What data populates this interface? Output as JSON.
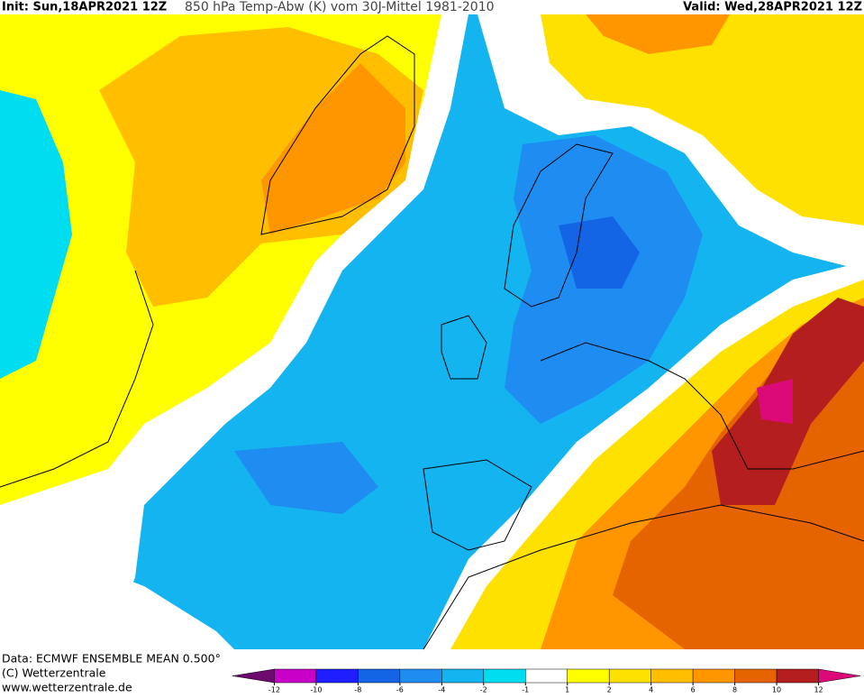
{
  "header": {
    "init": "Init: Sun,18APR2021 12Z",
    "title": "850 hPa Temp-Abw (K) vom 30J-Mittel 1981-2010",
    "valid": "Valid: Wed,28APR2021 12Z"
  },
  "footer": {
    "data": "Data: ECMWF ENSEMBLE MEAN 0.500°",
    "copyright": "(C) Wetterzentrale",
    "url": "www.wetterzentrale.de"
  },
  "colorbar": {
    "ticks": [
      -12,
      -10,
      -8,
      -6,
      -4,
      -2,
      -1,
      1,
      2,
      4,
      6,
      8,
      10,
      12
    ],
    "colors": [
      "#6e0a6e",
      "#c800c8",
      "#1e1eff",
      "#1464e6",
      "#1e8cf0",
      "#14b4f0",
      "#00dcf0",
      "#ffffff",
      "#ffff00",
      "#ffe100",
      "#ffbe00",
      "#ff9600",
      "#e66400",
      "#b41e1e",
      "#dc0a78"
    ]
  }
}
